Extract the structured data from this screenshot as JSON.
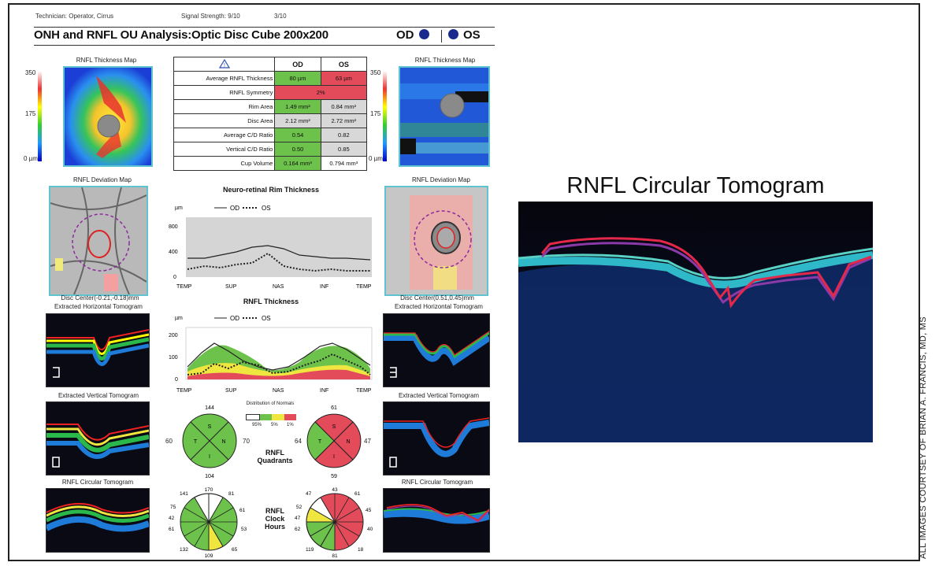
{
  "header": {
    "technician": "Technician: Operator, Cirrus",
    "signal_strength": "Signal Strength:  9/10",
    "signal_strength_os": "3/10",
    "title": "ONH and RNFL OU Analysis:Optic Disc Cube 200x200",
    "od_label": "OD",
    "os_label": "OS"
  },
  "thickness_map": {
    "caption": "RNFL Thickness Map",
    "scale_top": "350",
    "scale_mid": "175",
    "scale_bottom": "0 µm"
  },
  "params_table": {
    "col_od": "OD",
    "col_os": "OS",
    "rows": [
      {
        "label": "Average RNFL Thickness",
        "od": "80 µm",
        "os": "63 µm"
      },
      {
        "label": "RNFL Symmetry",
        "both": "2%"
      },
      {
        "label": "Rim Area",
        "od": "1.49 mm²",
        "os": "0.84 mm²"
      },
      {
        "label": "Disc Area",
        "od": "2.12 mm²",
        "os": "2.72 mm²"
      },
      {
        "label": "Average C/D Ratio",
        "od": "0.54",
        "os": "0.82"
      },
      {
        "label": "Vertical C/D Ratio",
        "od": "0.50",
        "os": "0.85"
      },
      {
        "label": "Cup Volume",
        "od": "0.164 mm³",
        "os": "0.794 mm³"
      }
    ]
  },
  "deviation_map": {
    "caption": "RNFL Deviation Map"
  },
  "disc_center": {
    "od": "Disc Center(-0.21,-0.18)mm",
    "os": "Disc Center(0.51,0.45)mm"
  },
  "tomograms": {
    "horizontal": "Extracted Horizontal Tomogram",
    "vertical": "Extracted Vertical Tomogram",
    "circular": "RNFL Circular Tomogram"
  },
  "rim_chart": {
    "title": "Neuro-retinal Rim Thickness",
    "unit": "µm",
    "legend_od": "OD",
    "legend_os": "OS",
    "y_ticks": [
      "800",
      "400",
      "0"
    ],
    "x_ticks": [
      "TEMP",
      "SUP",
      "NAS",
      "INF",
      "TEMP"
    ]
  },
  "rnfl_chart": {
    "title": "RNFL Thickness",
    "unit": "µm",
    "legend_od": "OD",
    "legend_os": "OS",
    "y_ticks": [
      "200",
      "100",
      "0"
    ],
    "x_ticks": [
      "TEMP",
      "SUP",
      "NAS",
      "INF",
      "TEMP"
    ]
  },
  "normative": {
    "title": "Distribution of Normals",
    "labels": [
      "95%",
      "5%",
      "1%"
    ]
  },
  "quadrants": {
    "label_line1": "RNFL",
    "label_line2": "Quadrants",
    "od": {
      "top": "144",
      "left": "60",
      "right": "70",
      "bottom": "104",
      "inner": [
        "S",
        "T",
        "N",
        "I"
      ]
    },
    "os": {
      "top": "61",
      "left": "64",
      "right": "47",
      "bottom": "59",
      "inner": [
        "S",
        "T",
        "N",
        "I"
      ]
    }
  },
  "clock_hours": {
    "label_line1": "RNFL",
    "label_line2": "Clock",
    "label_line3": "Hours",
    "od": {
      "values": [
        "170",
        "81",
        "61",
        "53",
        "65",
        "109",
        "132",
        "61",
        "42",
        "75",
        "141"
      ]
    },
    "os": {
      "values": [
        "43",
        "61",
        "45",
        "40",
        "18",
        "81",
        "119",
        "62",
        "47",
        "52",
        "47"
      ]
    }
  },
  "big_tomogram": {
    "title": "RNFL Circular Tomogram"
  },
  "credit": "ALL IMAGES COURTSEY OF BRIAN A. FRANCIS, MD, MS"
}
